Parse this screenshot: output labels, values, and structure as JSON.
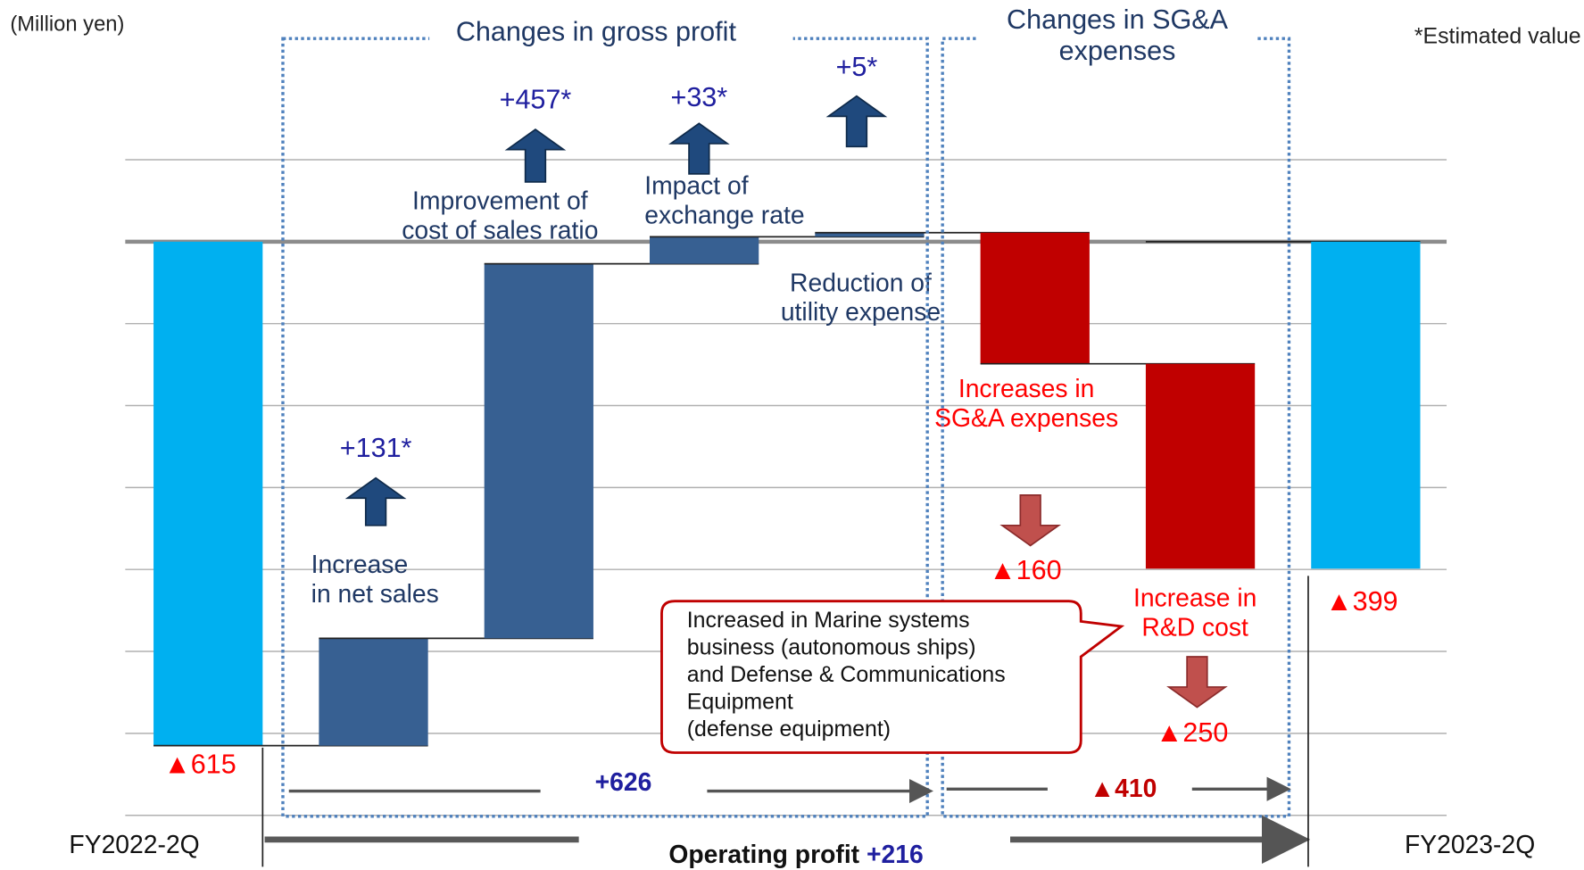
{
  "chart_data": {
    "type": "waterfall",
    "categories": [
      [
        "FY2022-2Q"
      ],
      [
        "Increase",
        "in net sales"
      ],
      [
        "Improvement of",
        "cost of sales ratio"
      ],
      [
        "Impact of",
        "exchange rate"
      ],
      [
        "Reduction of",
        "utility expense"
      ],
      [
        "Increases in",
        "SG&A expenses"
      ],
      [
        "Increase in",
        "R&D cost"
      ],
      [
        "FY2023-2Q"
      ]
    ],
    "values": [
      -615,
      131,
      457,
      33,
      5,
      -160,
      -250,
      -399
    ],
    "value_labels": [
      "▲615",
      "+131*",
      "+457*",
      "+33*",
      "+5*",
      "▲160",
      "▲250",
      "▲399"
    ],
    "is_total": [
      true,
      false,
      false,
      false,
      false,
      false,
      false,
      true
    ],
    "colors": {
      "total": "#00b0f0",
      "increase": "#376092",
      "decrease": "#c00000"
    },
    "ylim": [
      -700,
      100
    ],
    "yticks": [
      100,
      0,
      -100,
      -200,
      -300,
      -400,
      -500,
      -600,
      -700
    ],
    "grid": true,
    "annotations": {
      "unit": "(Million yen)",
      "note": "*Estimated value",
      "group1": "Changes in gross profit",
      "group2": [
        "Changes in SG&A",
        "expenses"
      ],
      "subtotal1": "+626",
      "subtotal2": "▲410",
      "total_label": "Operating profit",
      "total_value": "+216",
      "callout": [
        "Increased in Marine systems",
        "business (autonomous ships)",
        "and Defense & Communications",
        "Equipment",
        "(defense equipment)"
      ]
    }
  }
}
